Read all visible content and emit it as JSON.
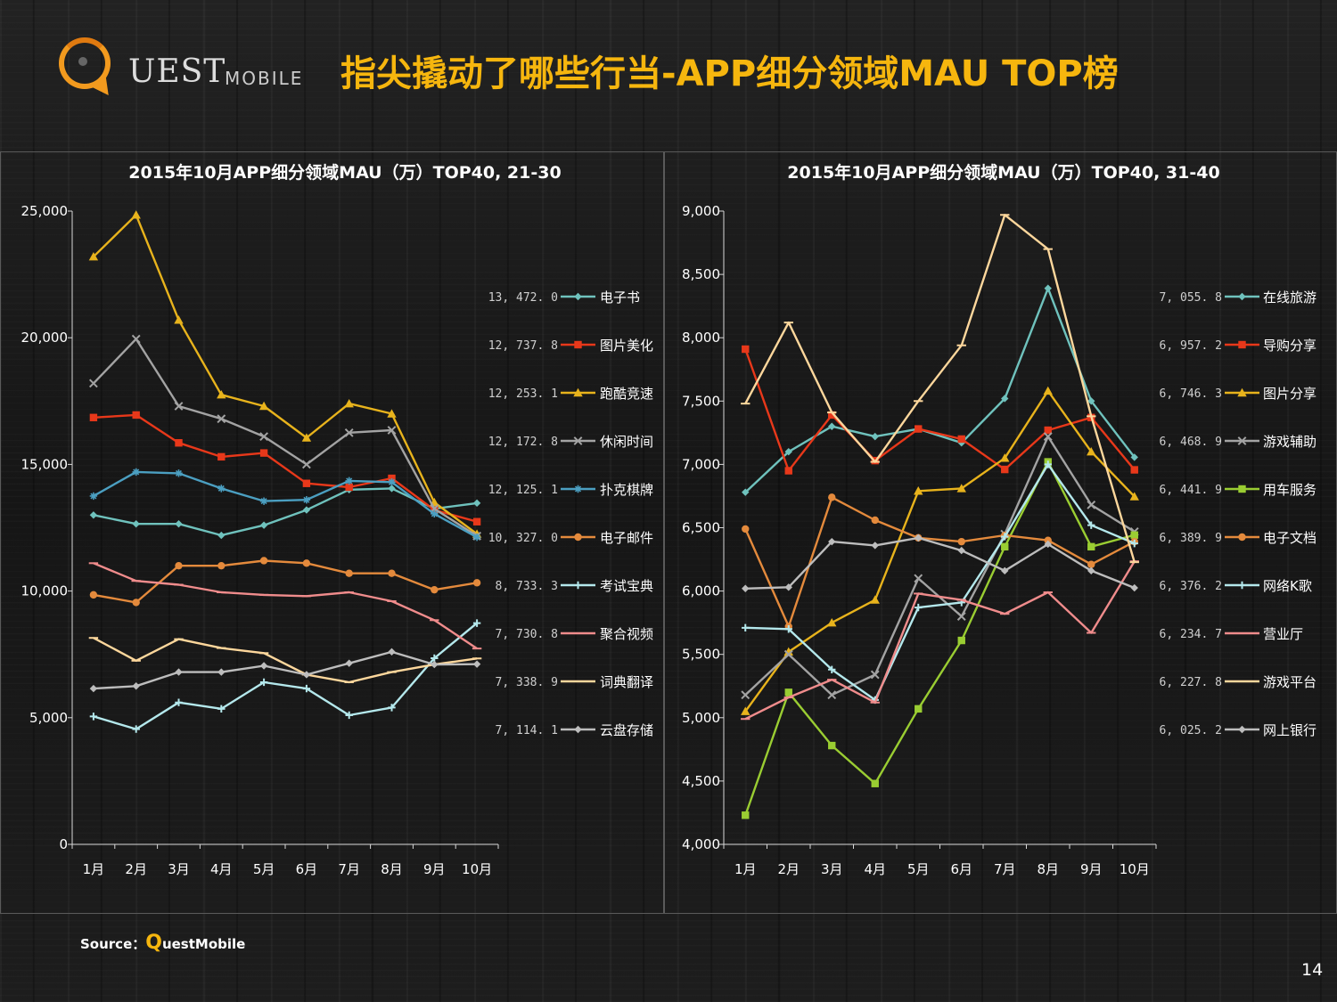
{
  "header": {
    "logo_uest": "UEST",
    "logo_mobile": "MOBILE",
    "title": "指尖撬动了哪些行当-APP细分领域MAU TOP榜"
  },
  "colors": {
    "accent": "#f6b60e",
    "logo": "#f29a1e"
  },
  "chart_data": [
    {
      "type": "line",
      "title": "2015年10月APP细分领域MAU（万）TOP40, 21-30",
      "categories": [
        "1月",
        "2月",
        "3月",
        "4月",
        "5月",
        "6月",
        "7月",
        "8月",
        "9月",
        "10月"
      ],
      "ylim": [
        0,
        25000
      ],
      "y_ticks": [
        0,
        5000,
        10000,
        15000,
        20000,
        25000
      ],
      "y_tick_labels": [
        "0",
        "5,000",
        "10,000",
        "15,000",
        "20,000",
        "25,000"
      ],
      "legend_position": "right",
      "series": [
        {
          "name": "电子书",
          "label": "13, 472. 0",
          "color": "#6fc2bd",
          "marker": "diamond",
          "values": [
            13000,
            12650,
            12650,
            12200,
            12600,
            13200,
            14000,
            14050,
            13250,
            13472
          ]
        },
        {
          "name": "图片美化",
          "label": "12, 737. 8",
          "color": "#e8381a",
          "marker": "square",
          "values": [
            16850,
            16950,
            15850,
            15300,
            15450,
            14250,
            14100,
            14450,
            13200,
            12738
          ]
        },
        {
          "name": "跑酷竞速",
          "label": "12, 253. 1",
          "color": "#e8b31c",
          "marker": "triangle",
          "values": [
            23200,
            24850,
            20700,
            17750,
            17300,
            16050,
            17400,
            17000,
            13500,
            12253
          ]
        },
        {
          "name": "休闲时间",
          "label": "12, 172. 8",
          "color": "#a3a3a3",
          "marker": "x",
          "values": [
            18200,
            19950,
            17300,
            16800,
            16100,
            15000,
            16250,
            16350,
            13250,
            12173
          ]
        },
        {
          "name": "扑克棋牌",
          "label": "12, 125. 1",
          "color": "#4b9fc1",
          "marker": "star",
          "values": [
            13750,
            14700,
            14650,
            14050,
            13550,
            13600,
            14350,
            14300,
            13050,
            12125
          ]
        },
        {
          "name": "电子邮件",
          "label": "10, 327. 0",
          "color": "#e48a3c",
          "marker": "circle",
          "values": [
            9850,
            9550,
            11000,
            11000,
            11200,
            11100,
            10700,
            10700,
            10050,
            10327
          ]
        },
        {
          "name": "考试宝典",
          "label": "8, 733. 3",
          "color": "#b4e8ec",
          "marker": "plus",
          "values": [
            5050,
            4550,
            5600,
            5350,
            6400,
            6150,
            5100,
            5400,
            7350,
            8733
          ]
        },
        {
          "name": "聚合视频",
          "label": "7, 730. 8",
          "color": "#f08c8c",
          "marker": "dash",
          "values": [
            11100,
            10400,
            10250,
            9950,
            9850,
            9800,
            9950,
            9600,
            8850,
            7731
          ]
        },
        {
          "name": "词典翻译",
          "label": "7, 338. 9",
          "color": "#fdd79c",
          "marker": "dash",
          "values": [
            8150,
            7250,
            8100,
            7750,
            7550,
            6700,
            6400,
            6800,
            7100,
            7339
          ]
        },
        {
          "name": "云盘存储",
          "label": "7, 114. 1",
          "color": "#bdbdbd",
          "marker": "diamond",
          "values": [
            6150,
            6250,
            6800,
            6800,
            7050,
            6700,
            7150,
            7600,
            7100,
            7114
          ]
        }
      ]
    },
    {
      "type": "line",
      "title": "2015年10月APP细分领域MAU（万）TOP40, 31-40",
      "categories": [
        "1月",
        "2月",
        "3月",
        "4月",
        "5月",
        "6月",
        "7月",
        "8月",
        "9月",
        "10月"
      ],
      "ylim": [
        4000,
        9000
      ],
      "y_ticks": [
        4000,
        4500,
        5000,
        5500,
        6000,
        6500,
        7000,
        7500,
        8000,
        8500,
        9000
      ],
      "y_tick_labels": [
        "4,000",
        "4,500",
        "5,000",
        "5,500",
        "6,000",
        "6,500",
        "7,000",
        "7,500",
        "8,000",
        "8,500",
        "9,000"
      ],
      "legend_position": "right",
      "series": [
        {
          "name": "在线旅游",
          "label": "7, 055. 8",
          "color": "#6fc2bd",
          "marker": "diamond",
          "values": [
            6780,
            7100,
            7300,
            7220,
            7280,
            7170,
            7520,
            8390,
            7500,
            7056
          ]
        },
        {
          "name": "导购分享",
          "label": "6, 957. 2",
          "color": "#e8381a",
          "marker": "square",
          "values": [
            7910,
            6950,
            7390,
            7030,
            7280,
            7200,
            6960,
            7270,
            7370,
            6957
          ]
        },
        {
          "name": "图片分享",
          "label": "6, 746. 3",
          "color": "#e8b31c",
          "marker": "triangle",
          "values": [
            5050,
            5520,
            5750,
            5930,
            6790,
            6810,
            7050,
            7580,
            7100,
            6746
          ]
        },
        {
          "name": "游戏辅助",
          "label": "6, 468. 9",
          "color": "#a3a3a3",
          "marker": "x",
          "values": [
            5180,
            5500,
            5180,
            5340,
            6100,
            5800,
            6450,
            7220,
            6680,
            6469
          ]
        },
        {
          "name": "用车服务",
          "label": "6, 441. 9",
          "color": "#9acd32",
          "marker": "square",
          "values": [
            4230,
            5200,
            4780,
            4480,
            5070,
            5610,
            6350,
            7020,
            6350,
            6442
          ]
        },
        {
          "name": "电子文档",
          "label": "6, 389. 9",
          "color": "#e48a3c",
          "marker": "circle",
          "values": [
            6490,
            5720,
            6740,
            6560,
            6420,
            6390,
            6440,
            6400,
            6210,
            6390
          ]
        },
        {
          "name": "网络K歌",
          "label": "6, 376. 2",
          "color": "#b4e8ec",
          "marker": "plus",
          "values": [
            5710,
            5700,
            5380,
            5140,
            5870,
            5910,
            6430,
            7000,
            6520,
            6376
          ]
        },
        {
          "name": "营业厅",
          "label": "6, 234. 7",
          "color": "#f08c8c",
          "marker": "dash",
          "values": [
            4990,
            5160,
            5300,
            5120,
            5980,
            5930,
            5820,
            5990,
            5670,
            6235
          ]
        },
        {
          "name": "游戏平台",
          "label": "6, 227. 8",
          "color": "#fdd79c",
          "marker": "dash",
          "values": [
            7480,
            8120,
            7410,
            7020,
            7500,
            7940,
            8970,
            8700,
            7380,
            6228
          ]
        },
        {
          "name": "网上银行",
          "label": "6, 025. 2",
          "color": "#bdbdbd",
          "marker": "diamond",
          "values": [
            6020,
            6030,
            6390,
            6360,
            6420,
            6320,
            6160,
            6370,
            6160,
            6025
          ]
        }
      ]
    }
  ],
  "footer": {
    "source_prefix": "Source：",
    "source_q": "Q",
    "source_rest": "uestMobile",
    "page_number": "14"
  }
}
